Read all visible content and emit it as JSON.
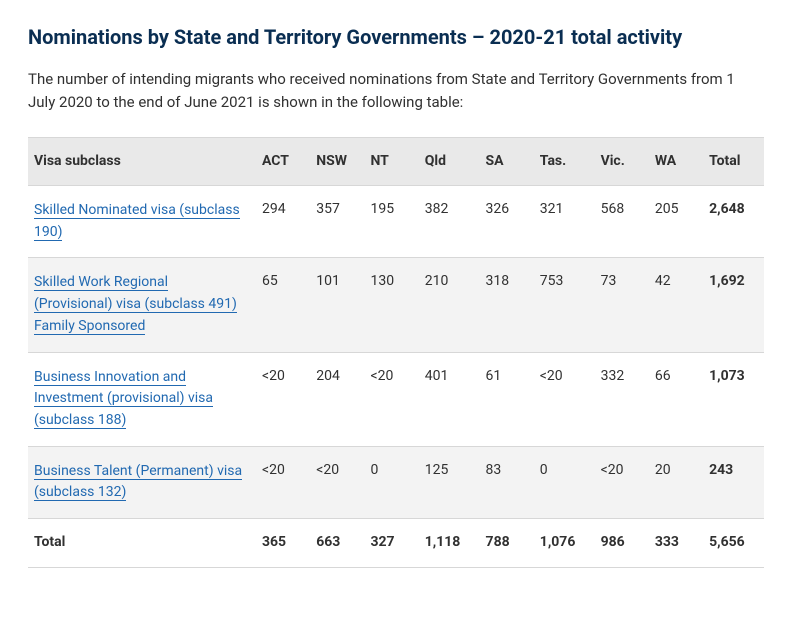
{
  "heading": "Nominations by State and Territory Governments – 2020-21 total activity",
  "intro": "The number of intending migrants who received nominations from State and Territory Governments from 1 July 2020 to the end of June 2021 is shown in the following table:",
  "table": {
    "columns": [
      "Visa subclass",
      "ACT",
      "NSW",
      "NT",
      "Qld",
      "SA",
      "Tas.",
      "Vic.",
      "WA",
      "Total"
    ],
    "rows": [
      {
        "label": "Skilled Nominated visa (subclass 190)",
        "is_link": true,
        "values": [
          "294",
          "357",
          "195",
          "382",
          "326",
          "321",
          "568",
          "205",
          "2,648"
        ]
      },
      {
        "label": "Skilled Work Regional (Provisional) visa (subclass 491) Family Sponsored",
        "is_link": true,
        "values": [
          "65",
          "101",
          "130",
          "210",
          "318",
          "753",
          "73",
          "42",
          "1,692"
        ]
      },
      {
        "label": "Business Innovation and Investment (provisional) visa (subclass 188)",
        "is_link": true,
        "values": [
          "<20",
          "204",
          "<20",
          "401",
          "61",
          "<20",
          "332",
          "66",
          "1,073"
        ]
      },
      {
        "label": "Business Talent (Permanent) visa (subclass 132)",
        "is_link": true,
        "values": [
          "<20",
          "<20",
          "0",
          "125",
          "83",
          "0",
          "<20",
          "20",
          "243"
        ]
      },
      {
        "label": "Total",
        "is_link": false,
        "is_total": true,
        "values": [
          "365",
          "663",
          "327",
          "1,118",
          "788",
          "1,076",
          "986",
          "333",
          "5,656"
        ]
      }
    ]
  }
}
